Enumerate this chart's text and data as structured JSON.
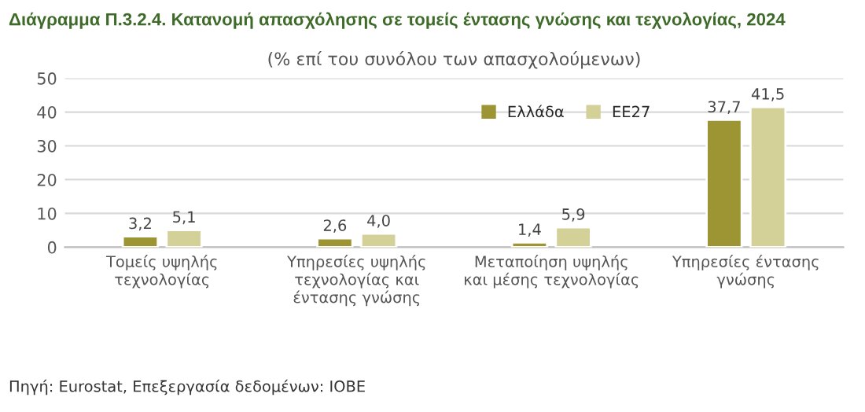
{
  "chart_data": {
    "type": "bar",
    "title": "Διάγραμμα Π.3.2.4. Κατανομή απασχόλησης σε τομείς έντασης γνώσης και τεχνολογίας, 2024",
    "subtitle": "(% επί του συνόλου των απασχολούμενων)",
    "categories": [
      "Τομείς υψηλής\nτεχνολογίας",
      "Υπηρεσίες υψηλής\nτεχνολογίας και\nέντασης γνώσης",
      "Μεταποίηση υψηλής\nκαι μέσης τεχνολογίας",
      "Υπηρεσίες έντασης\nγνώσης"
    ],
    "series": [
      {
        "name": "Ελλάδα",
        "color": "#9d9534",
        "values": [
          3.2,
          2.6,
          1.4,
          37.7
        ],
        "value_labels": [
          "3,2",
          "2,6",
          "1,4",
          "37,7"
        ]
      },
      {
        "name": "ΕΕ27",
        "color": "#d3d098",
        "values": [
          5.1,
          4.0,
          5.9,
          41.5
        ],
        "value_labels": [
          "5,1",
          "4,0",
          "5,9",
          "41,5"
        ]
      }
    ],
    "ylim": [
      0,
      50
    ],
    "yticks": [
      0,
      10,
      20,
      30,
      40,
      50
    ],
    "grid": "y",
    "legend": "top right",
    "annotations": [
      "Πηγή: Eurostat, Επεξεργασία δεδομένων: ΙΟΒΕ"
    ]
  }
}
